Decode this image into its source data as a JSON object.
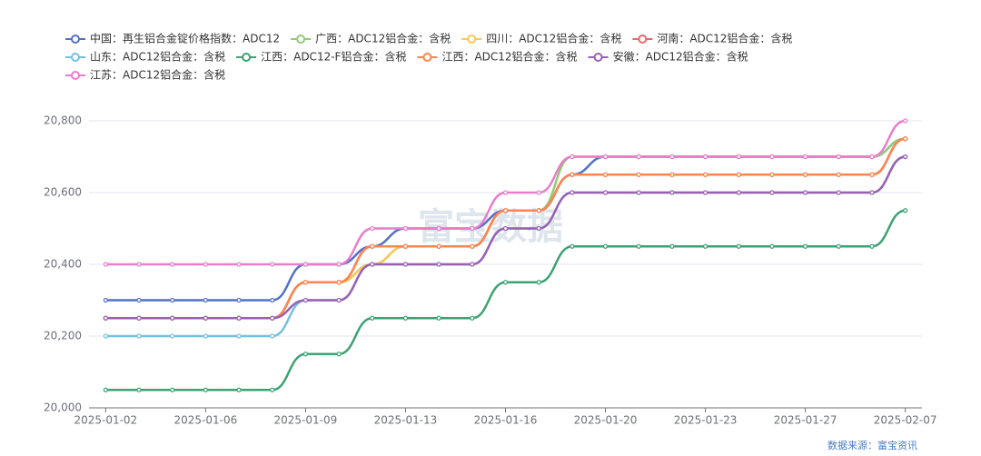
{
  "chart_data": {
    "type": "line",
    "categories": [
      "2025-01-02",
      null,
      null,
      "2025-01-06",
      null,
      null,
      "2025-01-09",
      null,
      null,
      "2025-01-13",
      null,
      null,
      "2025-01-16",
      null,
      null,
      "2025-01-20",
      null,
      null,
      "2025-01-23",
      null,
      null,
      "2025-01-27",
      null,
      null,
      "2025-02-07"
    ],
    "ylim": [
      20000,
      20800
    ],
    "yticks": [
      {
        "value": 20000,
        "label": "20,000"
      },
      {
        "value": 20200,
        "label": "20,200"
      },
      {
        "value": 20400,
        "label": "20,400"
      },
      {
        "value": 20600,
        "label": "20,600"
      },
      {
        "value": 20800,
        "label": "20,800"
      }
    ],
    "grid": true,
    "legend": "top",
    "watermark": "富宝数据",
    "source": "数据来源：富宝资讯",
    "series": [
      {
        "name": "中国：再生铝合金锭价格指数：ADC12",
        "color": "#5470c6",
        "values": [
          20300,
          20300,
          20300,
          20300,
          20300,
          20300,
          20400,
          20400,
          20450,
          20500,
          20500,
          20500,
          20550,
          20550,
          20650,
          20700,
          20700,
          20700,
          20700,
          20700,
          20700,
          20700,
          20700,
          20700,
          20750
        ]
      },
      {
        "name": "广西：ADC12铝合金：含税",
        "color": "#91cc75",
        "values": [
          20250,
          20250,
          20250,
          20250,
          20250,
          20250,
          20350,
          20350,
          20400,
          20450,
          20450,
          20450,
          20550,
          20550,
          20700,
          20700,
          20700,
          20700,
          20700,
          20700,
          20700,
          20700,
          20700,
          20700,
          20750
        ]
      },
      {
        "name": "四川：ADC12铝合金：含税",
        "color": "#fac858",
        "values": [
          20250,
          20250,
          20250,
          20250,
          20250,
          20250,
          20350,
          20350,
          20400,
          20450,
          20450,
          20450,
          20550,
          20550,
          20650,
          20650,
          20650,
          20650,
          20650,
          20650,
          20650,
          20650,
          20650,
          20650,
          20750
        ]
      },
      {
        "name": "河南：ADC12铝合金：含税",
        "color": "#ee6666",
        "values": [
          20250,
          20250,
          20250,
          20250,
          20250,
          20250,
          20350,
          20350,
          20450,
          20450,
          20450,
          20450,
          20550,
          20550,
          20650,
          20650,
          20650,
          20650,
          20650,
          20650,
          20650,
          20650,
          20650,
          20650,
          20750
        ]
      },
      {
        "name": "山东：ADC12铝合金：含税",
        "color": "#73c0de",
        "values": [
          20200,
          20200,
          20200,
          20200,
          20200,
          20200,
          20300,
          20300,
          20400,
          20400,
          20400,
          20400,
          20500,
          20500,
          20600,
          20600,
          20600,
          20600,
          20600,
          20600,
          20600,
          20600,
          20600,
          20600,
          20700
        ]
      },
      {
        "name": "江西：ADC12-F铝合金：含税",
        "color": "#3ba272",
        "values": [
          20050,
          20050,
          20050,
          20050,
          20050,
          20050,
          20150,
          20150,
          20250,
          20250,
          20250,
          20250,
          20350,
          20350,
          20450,
          20450,
          20450,
          20450,
          20450,
          20450,
          20450,
          20450,
          20450,
          20450,
          20550
        ]
      },
      {
        "name": "江西：ADC12铝合金：含税",
        "color": "#fc8452",
        "values": [
          20250,
          20250,
          20250,
          20250,
          20250,
          20250,
          20350,
          20350,
          20450,
          20450,
          20450,
          20450,
          20550,
          20550,
          20650,
          20650,
          20650,
          20650,
          20650,
          20650,
          20650,
          20650,
          20650,
          20650,
          20750
        ]
      },
      {
        "name": "安徽：ADC12铝合金：含税",
        "color": "#9a60b4",
        "values": [
          20250,
          20250,
          20250,
          20250,
          20250,
          20250,
          20300,
          20300,
          20400,
          20400,
          20400,
          20400,
          20500,
          20500,
          20600,
          20600,
          20600,
          20600,
          20600,
          20600,
          20600,
          20600,
          20600,
          20600,
          20700
        ]
      },
      {
        "name": "江苏：ADC12铝合金：含税",
        "color": "#ea7ccc",
        "values": [
          20400,
          20400,
          20400,
          20400,
          20400,
          20400,
          20400,
          20400,
          20500,
          20500,
          20500,
          20500,
          20600,
          20600,
          20700,
          20700,
          20700,
          20700,
          20700,
          20700,
          20700,
          20700,
          20700,
          20700,
          20800
        ]
      }
    ]
  }
}
